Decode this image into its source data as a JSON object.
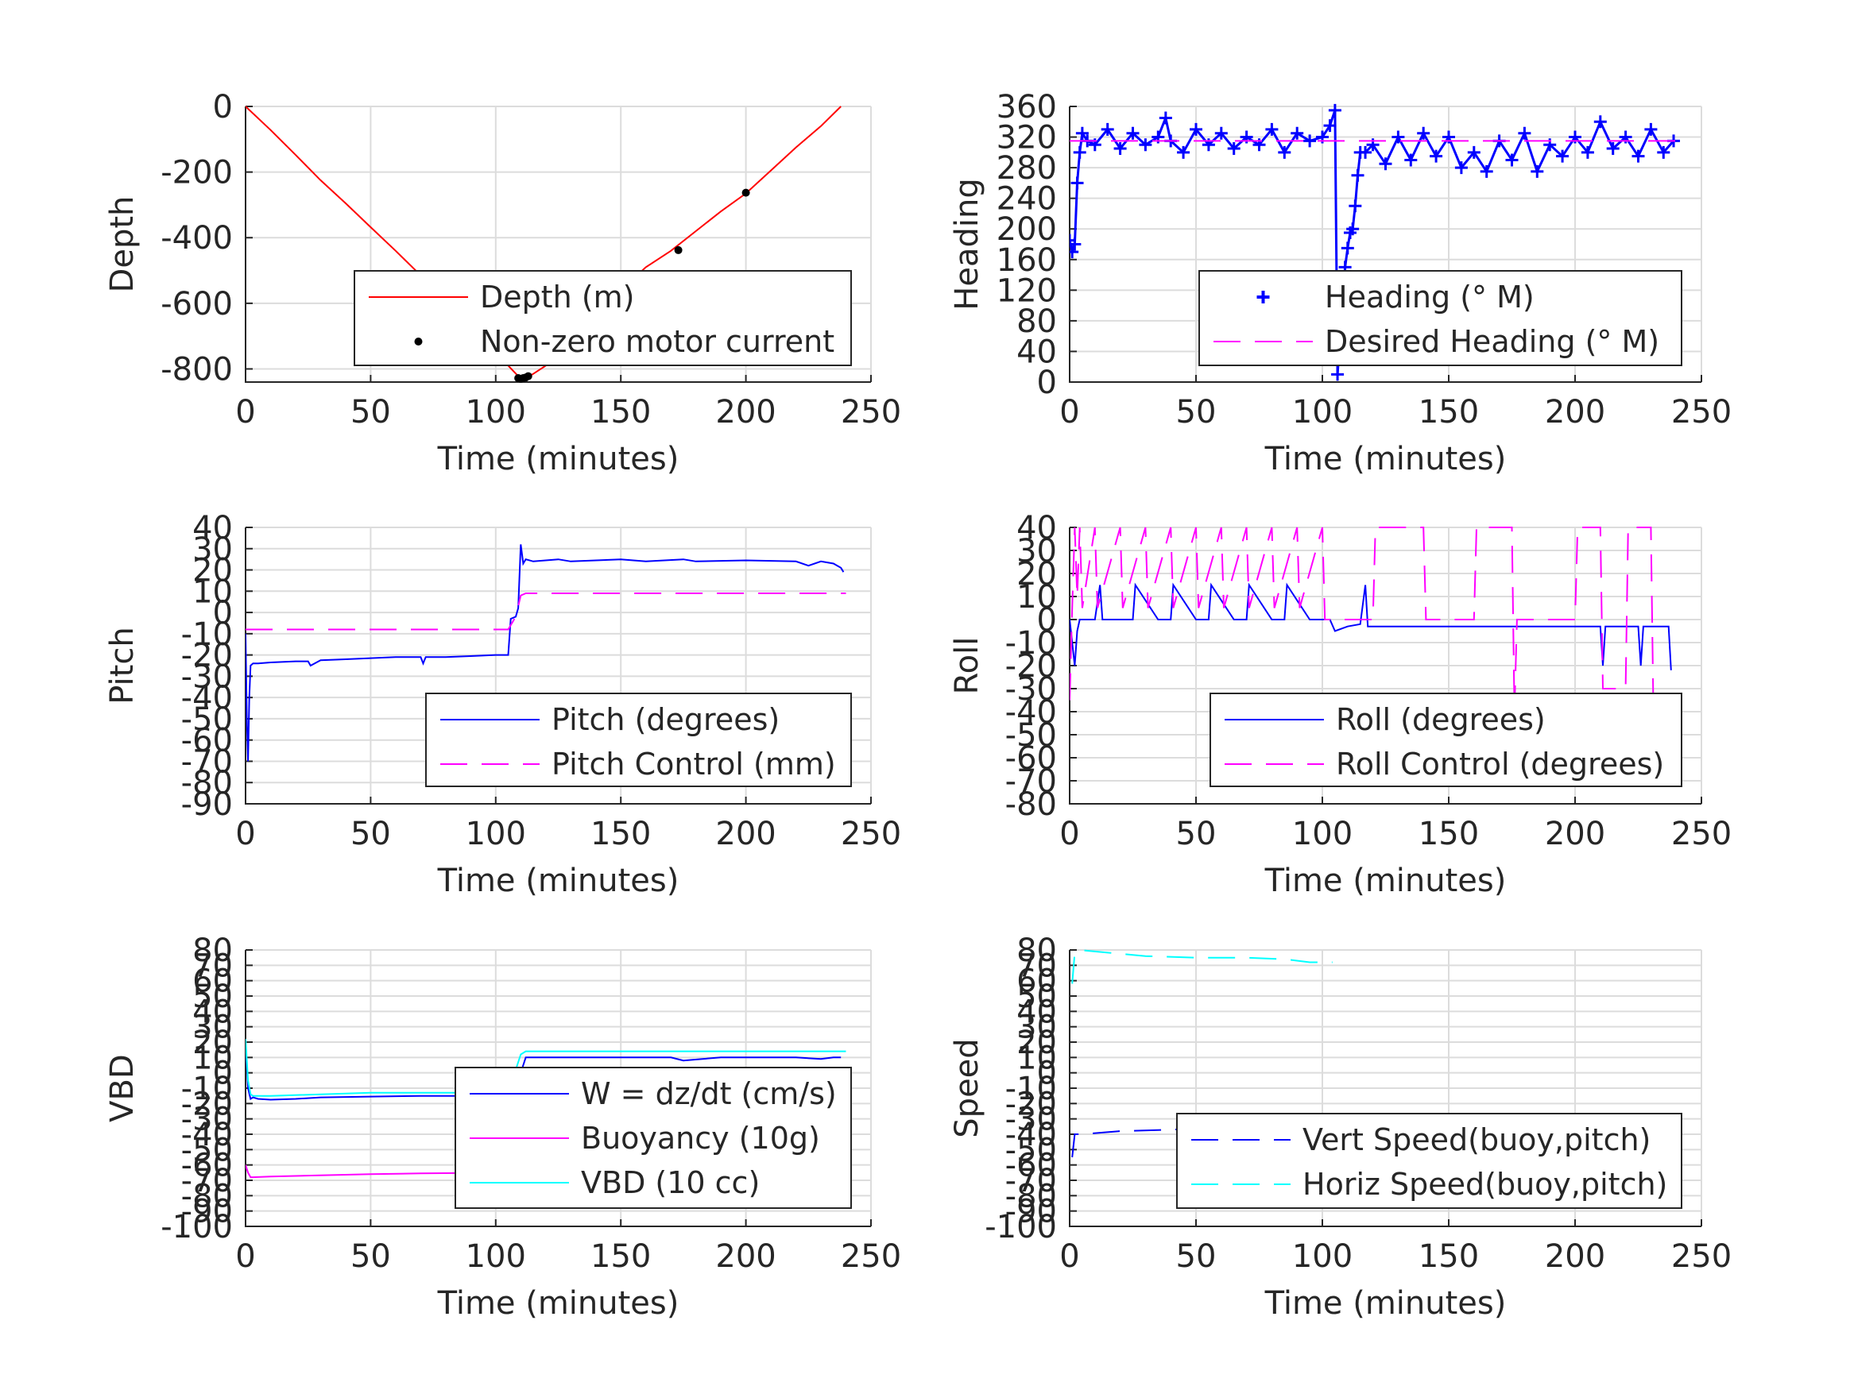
{
  "chart_data": [
    {
      "id": "depth",
      "type": "line",
      "xlabel": "Time (minutes)",
      "ylabel": "Depth",
      "xlim": [
        0,
        250
      ],
      "ylim": [
        -840,
        0
      ],
      "xticks": [
        0,
        50,
        100,
        150,
        200,
        250
      ],
      "yticks": [
        -800,
        -600,
        -400,
        -200,
        0
      ],
      "ytick_labels": [
        "-800",
        "-600",
        "-400",
        "-200",
        "0"
      ],
      "grid": true,
      "legend_placement": "bottom-right",
      "series": [
        {
          "name": "Depth (m)",
          "style": "solid",
          "color": "#ff0000",
          "x": [
            0,
            10,
            20,
            30,
            40,
            50,
            60,
            70,
            80,
            90,
            100,
            105,
            110,
            112,
            115,
            120,
            130,
            140,
            150,
            160,
            170,
            180,
            190,
            200,
            210,
            220,
            230,
            238
          ],
          "y": [
            0,
            -72,
            -148,
            -225,
            -295,
            -368,
            -440,
            -515,
            -590,
            -665,
            -745,
            -790,
            -830,
            -828,
            -815,
            -790,
            -705,
            -635,
            -560,
            -490,
            -440,
            -380,
            -320,
            -265,
            -195,
            -125,
            -60,
            0
          ]
        },
        {
          "name": "Non-zero motor current",
          "style": "dots",
          "color": "#000000",
          "x": [
            109,
            110,
            111,
            112,
            113,
            173,
            200
          ],
          "y": [
            -828,
            -830,
            -828,
            -826,
            -822,
            -438,
            -263
          ]
        }
      ]
    },
    {
      "id": "heading",
      "type": "scatter",
      "xlabel": "Time (minutes)",
      "ylabel": "Heading",
      "xlim": [
        0,
        250
      ],
      "ylim": [
        0,
        360
      ],
      "xticks": [
        0,
        50,
        100,
        150,
        200,
        250
      ],
      "yticks": [
        0,
        40,
        80,
        120,
        160,
        200,
        240,
        280,
        320,
        360
      ],
      "ytick_labels": [
        "0",
        "40",
        "80",
        "120",
        "160",
        "200",
        "240",
        "280",
        "320",
        "360"
      ],
      "grid": true,
      "legend_placement": "bottom-right",
      "series": [
        {
          "name": "Heading (° M)",
          "style": "plus",
          "color": "#0000ff",
          "x": [
            0,
            1,
            2,
            3,
            4,
            5,
            7,
            10,
            15,
            20,
            25,
            30,
            35,
            38,
            40,
            45,
            50,
            55,
            60,
            65,
            70,
            75,
            80,
            85,
            90,
            95,
            100,
            103,
            105,
            106,
            107,
            108,
            109,
            110,
            111,
            112,
            113,
            114,
            115,
            117,
            120,
            125,
            130,
            135,
            140,
            145,
            150,
            155,
            160,
            165,
            170,
            175,
            180,
            185,
            190,
            195,
            200,
            205,
            210,
            215,
            220,
            225,
            230,
            235,
            239
          ],
          "y": [
            185,
            170,
            180,
            260,
            300,
            325,
            315,
            310,
            330,
            305,
            325,
            310,
            320,
            345,
            315,
            300,
            330,
            310,
            325,
            305,
            320,
            310,
            330,
            300,
            325,
            315,
            320,
            335,
            355,
            10,
            60,
            110,
            150,
            175,
            195,
            200,
            230,
            270,
            300,
            300,
            310,
            285,
            320,
            290,
            325,
            295,
            320,
            280,
            300,
            275,
            315,
            290,
            325,
            275,
            310,
            295,
            320,
            300,
            340,
            305,
            320,
            295,
            330,
            300,
            315
          ]
        },
        {
          "name": "Desired Heading (° M)",
          "style": "dashed",
          "color": "#ff00ff",
          "x": [
            0,
            240
          ],
          "y": [
            315,
            315
          ]
        }
      ]
    },
    {
      "id": "pitch",
      "type": "line",
      "xlabel": "Time (minutes)",
      "ylabel": "Pitch",
      "xlim": [
        0,
        250
      ],
      "ylim": [
        -90,
        40
      ],
      "xticks": [
        0,
        50,
        100,
        150,
        200,
        250
      ],
      "yticks": [
        -90,
        -80,
        -70,
        -60,
        -50,
        -40,
        -30,
        -20,
        -10,
        0,
        10,
        20,
        30,
        40
      ],
      "ytick_labels": [
        "-90",
        "-80",
        "-70",
        "-60",
        "-50",
        "-40",
        "-30",
        "-20",
        "-10",
        "0",
        "10",
        "20",
        "30",
        "40"
      ],
      "grid": true,
      "legend_placement": "bottom-right",
      "series": [
        {
          "name": "Pitch (degrees)",
          "style": "solid",
          "color": "#0000ff",
          "x": [
            0,
            0.5,
            1,
            1.5,
            2,
            3,
            5,
            10,
            20,
            25,
            26,
            30,
            40,
            50,
            60,
            70,
            71,
            72,
            80,
            90,
            100,
            105,
            106,
            108,
            109,
            110,
            111,
            112,
            115,
            125,
            130,
            150,
            160,
            175,
            180,
            200,
            220,
            225,
            230,
            235,
            238,
            239
          ],
          "y": [
            -10,
            -50,
            -70,
            -40,
            -25,
            -24,
            -24,
            -23.5,
            -23,
            -23,
            -25,
            -22.5,
            -22,
            -21.5,
            -21,
            -21,
            -24,
            -21,
            -21,
            -20.5,
            -20,
            -20,
            -3,
            -2,
            2,
            32,
            23,
            25,
            24,
            25,
            24,
            25,
            24,
            25,
            24,
            24.5,
            24,
            22,
            24,
            23,
            21,
            19
          ]
        },
        {
          "name": "Pitch Control (mm)",
          "style": "dashed",
          "color": "#ff00ff",
          "x": [
            0,
            105,
            108,
            110,
            112,
            240
          ],
          "y": [
            -8,
            -8,
            -2,
            8,
            9,
            9
          ]
        }
      ]
    },
    {
      "id": "roll",
      "type": "line",
      "xlabel": "Time (minutes)",
      "ylabel": "Roll",
      "xlim": [
        0,
        250
      ],
      "ylim": [
        -80,
        40
      ],
      "xticks": [
        0,
        50,
        100,
        150,
        200,
        250
      ],
      "yticks": [
        -80,
        -70,
        -60,
        -50,
        -40,
        -30,
        -20,
        -10,
        0,
        10,
        20,
        30,
        40
      ],
      "ytick_labels": [
        "-80",
        "-70",
        "-60",
        "-50",
        "-40",
        "-30",
        "-20",
        "-10",
        "0",
        "10",
        "20",
        "30",
        "40"
      ],
      "grid": true,
      "legend_placement": "bottom-right",
      "series": [
        {
          "name": "Roll (degrees)",
          "style": "solid",
          "color": "#0000ff",
          "x": [
            0,
            2,
            3,
            4,
            6,
            10,
            12,
            13,
            20,
            25,
            26,
            35,
            40,
            41,
            50,
            55,
            56,
            65,
            70,
            71,
            80,
            85,
            86,
            95,
            100,
            103,
            105,
            110,
            115,
            117,
            118,
            125,
            140,
            150,
            170,
            180,
            200,
            210,
            211,
            212,
            225,
            226,
            227,
            235,
            237,
            238
          ],
          "y": [
            0,
            -20,
            -5,
            0,
            0,
            0,
            15,
            0,
            0,
            0,
            15,
            0,
            0,
            15,
            0,
            0,
            15,
            0,
            0,
            15,
            0,
            0,
            15,
            0,
            0,
            0,
            -5,
            -3,
            -2,
            15,
            -3,
            -3,
            -3,
            -3,
            -3,
            -3,
            -3,
            -3,
            -20,
            -3,
            -3,
            -20,
            -3,
            -3,
            -3,
            -22
          ]
        },
        {
          "name": "Roll Control (degrees)",
          "style": "dashed",
          "color": "#ff00ff",
          "x": [
            0,
            1,
            2,
            3,
            4,
            5,
            10,
            11,
            20,
            21,
            30,
            31,
            40,
            41,
            50,
            51,
            60,
            61,
            70,
            71,
            80,
            81,
            90,
            91,
            100,
            101,
            110,
            120,
            121,
            140,
            141,
            160,
            161,
            175,
            176,
            177,
            200,
            201,
            210,
            211,
            220,
            221,
            230,
            231,
            238
          ],
          "y": [
            -35,
            5,
            40,
            10,
            40,
            5,
            40,
            5,
            40,
            5,
            40,
            5,
            40,
            5,
            40,
            5,
            40,
            5,
            40,
            5,
            40,
            5,
            40,
            5,
            40,
            0,
            0,
            0,
            40,
            40,
            0,
            0,
            40,
            40,
            -40,
            0,
            0,
            40,
            40,
            -30,
            -30,
            40,
            40,
            -40,
            -40
          ]
        }
      ]
    },
    {
      "id": "vbd",
      "type": "line",
      "xlabel": "Time (minutes)",
      "ylabel": "VBD",
      "xlim": [
        0,
        250
      ],
      "ylim": [
        -100,
        80
      ],
      "xticks": [
        0,
        50,
        100,
        150,
        200,
        250
      ],
      "yticks": [
        -100,
        -90,
        -80,
        -70,
        -60,
        -50,
        -40,
        -30,
        -20,
        -10,
        0,
        10,
        20,
        30,
        40,
        50,
        60,
        70,
        80
      ],
      "ytick_labels": [
        "-100",
        "-90",
        "-80",
        "-70",
        "-60",
        "-50",
        "-40",
        "-30",
        "-20",
        "-10",
        "0",
        "10",
        "20",
        "30",
        "40",
        "50",
        "60",
        "70",
        "80"
      ],
      "grid": true,
      "legend_placement": "bottom-right",
      "series": [
        {
          "name": "W = dz/dt (cm/s)",
          "style": "solid",
          "color": "#0000ff",
          "x": [
            0,
            1,
            2,
            3,
            5,
            10,
            20,
            30,
            50,
            70,
            90,
            100,
            105,
            108,
            112,
            115,
            130,
            150,
            170,
            175,
            190,
            200,
            220,
            230,
            235,
            238
          ],
          "y": [
            20,
            -10,
            -17,
            -16,
            -17,
            -17.5,
            -17,
            -16,
            -15.5,
            -15,
            -15,
            -15,
            -16,
            -10,
            10,
            10,
            10,
            10,
            10,
            8,
            10,
            10,
            10,
            9,
            10,
            10
          ]
        },
        {
          "name": "Buoyancy (10g)",
          "style": "solid",
          "color": "#ff00ff",
          "x": [
            0,
            1,
            2,
            3,
            10,
            50,
            70,
            105
          ],
          "y": [
            -60,
            -65,
            -68,
            -68,
            -67.5,
            -66,
            -65.5,
            -65
          ]
        },
        {
          "name": "VBD (10 cc)",
          "style": "solid",
          "color": "#00ffff",
          "x": [
            0,
            1,
            2,
            3,
            10,
            50,
            90,
            105,
            110,
            112,
            240
          ],
          "y": [
            22,
            -5,
            -14,
            -15,
            -15,
            -13,
            -13,
            -13,
            12,
            14,
            14
          ]
        }
      ]
    },
    {
      "id": "speed",
      "type": "line",
      "xlabel": "Time (minutes)",
      "ylabel": "Speed",
      "xlim": [
        0,
        250
      ],
      "ylim": [
        -100,
        80
      ],
      "xticks": [
        0,
        50,
        100,
        150,
        200,
        250
      ],
      "yticks": [
        -100,
        -90,
        -80,
        -70,
        -60,
        -50,
        -40,
        -30,
        -20,
        -10,
        0,
        10,
        20,
        30,
        40,
        50,
        60,
        70,
        80
      ],
      "ytick_labels": [
        "-100",
        "-90",
        "-80",
        "-70",
        "-60",
        "-50",
        "-40",
        "-30",
        "-20",
        "-10",
        "0",
        "10",
        "20",
        "30",
        "40",
        "50",
        "60",
        "70",
        "80"
      ],
      "grid": true,
      "legend_placement": "bottom-right",
      "series": [
        {
          "name": "Vert Speed(buoy,pitch)",
          "style": "dashed",
          "color": "#0000ff",
          "x": [
            1,
            2,
            5,
            20,
            40,
            60,
            70,
            80,
            81,
            85,
            86,
            100,
            102
          ],
          "y": [
            -55,
            -40,
            -40,
            -38,
            -37,
            -36,
            -35,
            -34,
            -42,
            -34,
            -40,
            -34,
            -34
          ]
        },
        {
          "name": "Horiz Speed(buoy,pitch)",
          "style": "dashed",
          "color": "#00ffff",
          "x": [
            1,
            2,
            4,
            10,
            30,
            50,
            70,
            85,
            95,
            104
          ],
          "y": [
            58,
            78,
            80,
            79,
            76,
            75,
            75,
            74,
            72,
            72
          ]
        }
      ]
    }
  ]
}
